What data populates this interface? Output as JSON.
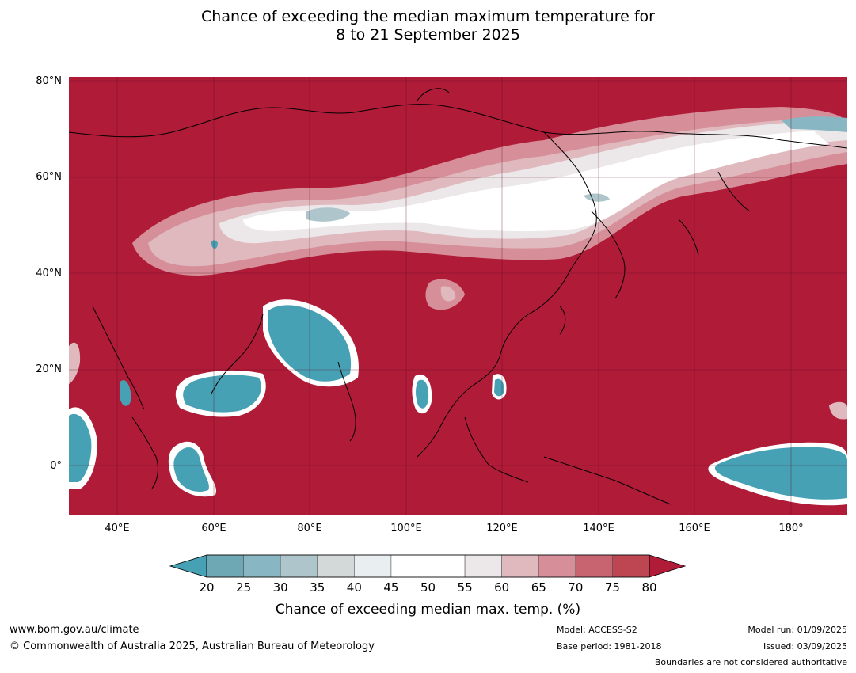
{
  "title": {
    "line1": "Chance of exceeding the median maximum temperature for",
    "line2": "8 to 21 September 2025"
  },
  "map": {
    "lat_labels": [
      "80°N",
      "60°N",
      "40°N",
      "20°N",
      "0°"
    ],
    "lon_labels": [
      "40°E",
      "60°E",
      "80°E",
      "100°E",
      "120°E",
      "140°E",
      "160°E",
      "180°"
    ]
  },
  "colorbar": {
    "ticks": [
      "20",
      "25",
      "30",
      "35",
      "40",
      "45",
      "50",
      "55",
      "60",
      "65",
      "70",
      "75",
      "80"
    ],
    "colors": [
      "#47a1b4",
      "#6fa8b5",
      "#88b6c2",
      "#adc5cb",
      "#d3d8d9",
      "#e9eff1",
      "#ffffff",
      "#ffffff",
      "#ece7e9",
      "#e0b9bf",
      "#d68e99",
      "#c8646f",
      "#be4652",
      "#b01b38"
    ],
    "title": "Chance of exceeding median max. temp. (%)"
  },
  "footer": {
    "url": "www.bom.gov.au/climate",
    "copyright": "© Commonwealth of Australia 2025, Australian Bureau of Meteorology",
    "model": "Model: ACCESS-S2",
    "base_period": "Base period: 1981-2018",
    "model_run": "Model run: 01/09/2025",
    "issued": "Issued: 03/09/2025",
    "boundaries": "Boundaries are not considered authoritative"
  }
}
